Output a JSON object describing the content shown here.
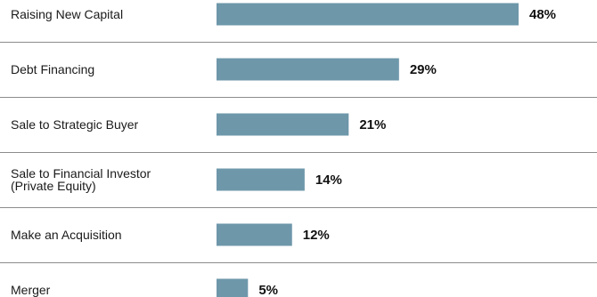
{
  "chart_data": {
    "type": "bar",
    "orientation": "horizontal",
    "categories": [
      [
        "Raising New Capital"
      ],
      [
        "Debt Financing"
      ],
      [
        "Sale to Strategic Buyer"
      ],
      [
        "Sale to Financial Investor",
        "(Private Equity)"
      ],
      [
        "Make an Acquisition"
      ],
      [
        "Merger"
      ]
    ],
    "values": [
      48,
      29,
      21,
      14,
      12,
      5
    ],
    "value_labels": [
      "48%",
      "29%",
      "21%",
      "14%",
      "12%",
      "5%"
    ],
    "value_unit": "%",
    "xlim": [
      0,
      48
    ],
    "bar_color": "#6e97aa",
    "separator_color": "#8c8c8c",
    "grid": false,
    "legend": "none"
  }
}
